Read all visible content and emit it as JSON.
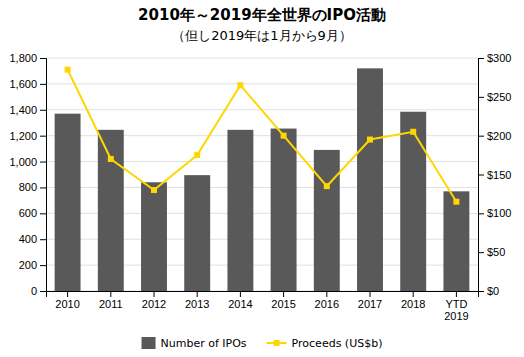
{
  "chart_data": {
    "type": "bar",
    "title": "2010年～2019年全世界のIPO活動",
    "subtitle": "（但し2019年は1月から9月）",
    "categories": [
      "2010",
      "2011",
      "2012",
      "2013",
      "2014",
      "2015",
      "2016",
      "2017",
      "2018",
      "YTD\n2019"
    ],
    "series": [
      {
        "name": "Number of IPOs",
        "type": "bar",
        "color": "#595959",
        "values": [
          1370,
          1245,
          840,
          895,
          1245,
          1255,
          1090,
          1720,
          1385,
          770
        ]
      },
      {
        "name": "Proceeds (US$b)",
        "type": "line",
        "color": "#FFD700",
        "marker": "square",
        "line_style": "solid",
        "axis": "y2",
        "values": [
          285,
          170,
          130,
          175,
          265,
          200,
          135,
          195,
          205,
          115
        ]
      }
    ],
    "ylim": [
      0,
      1800
    ],
    "yticks": [
      0,
      200,
      400,
      600,
      800,
      {
        "value": 1000,
        "label": "1,000"
      },
      {
        "value": 1200,
        "label": "1,200"
      },
      {
        "value": 1400,
        "label": "1,400"
      },
      {
        "value": 1600,
        "label": "1,600"
      },
      {
        "value": 1800,
        "label": "1,800"
      }
    ],
    "y2lim": [
      0,
      300
    ],
    "y2ticks": [
      {
        "value": 0,
        "label": "$0"
      },
      {
        "value": 50,
        "label": "$50"
      },
      {
        "value": 100,
        "label": "$100"
      },
      {
        "value": 150,
        "label": "$150"
      },
      {
        "value": 200,
        "label": "$200"
      },
      {
        "value": 250,
        "label": "$250"
      },
      {
        "value": 300,
        "label": "$300"
      }
    ],
    "grid": true,
    "legend": "bottom"
  }
}
